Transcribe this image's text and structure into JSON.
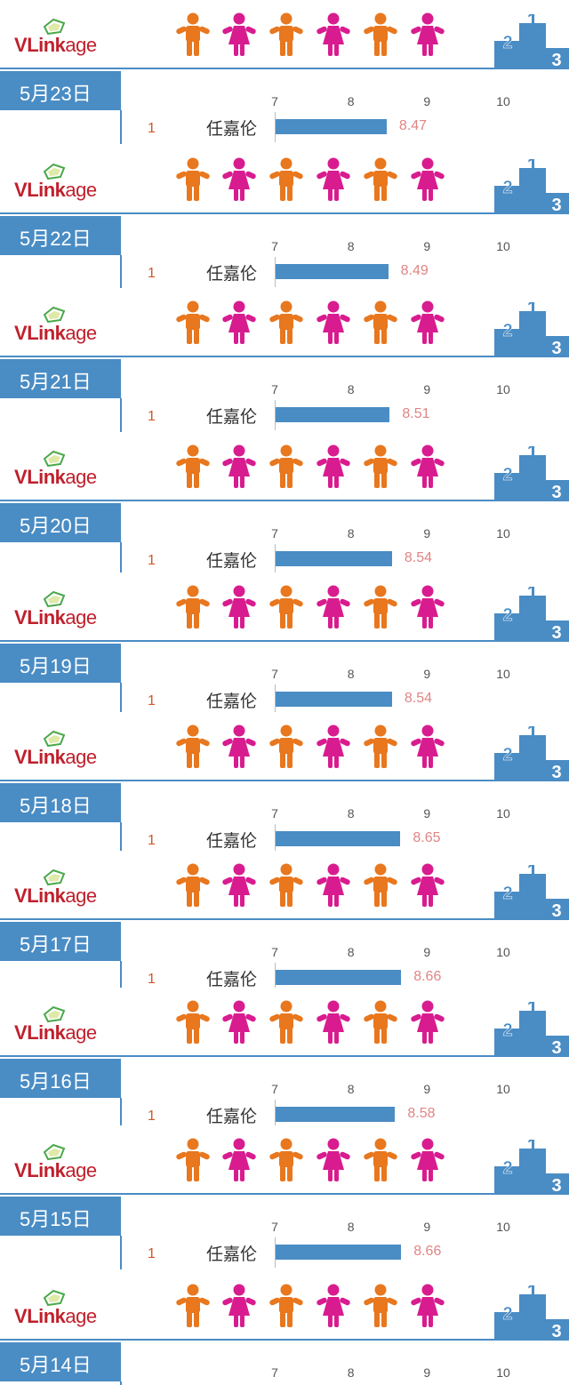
{
  "brand": {
    "logo_v": "V",
    "logo_link": "Link",
    "logo_age": "age"
  },
  "colors": {
    "accent": "#4a8cc4",
    "male_figure": "#e8771e",
    "female_figure": "#d81c8f",
    "value_text": "#e08585",
    "rank_text": "#d0582a"
  },
  "icons": {
    "logo": "vlinkage-logo-icon",
    "male": "male-person-icon",
    "female": "female-person-icon",
    "podium": "podium-icon"
  },
  "podium_labels": [
    "2",
    "1",
    "3"
  ],
  "chart_data": {
    "type": "bar",
    "orientation": "horizontal",
    "ticks": [
      7,
      8,
      9,
      10
    ],
    "xlim": [
      7,
      10
    ],
    "panels": [
      {
        "date": "5月23日",
        "rank": "1",
        "name": "任嘉伦",
        "value": 8.47,
        "value_label": "8.47"
      },
      {
        "date": "5月22日",
        "rank": "1",
        "name": "任嘉伦",
        "value": 8.49,
        "value_label": "8.49"
      },
      {
        "date": "5月21日",
        "rank": "1",
        "name": "任嘉伦",
        "value": 8.51,
        "value_label": "8.51"
      },
      {
        "date": "5月20日",
        "rank": "1",
        "name": "任嘉伦",
        "value": 8.54,
        "value_label": "8.54"
      },
      {
        "date": "5月19日",
        "rank": "1",
        "name": "任嘉伦",
        "value": 8.54,
        "value_label": "8.54"
      },
      {
        "date": "5月18日",
        "rank": "1",
        "name": "任嘉伦",
        "value": 8.65,
        "value_label": "8.65"
      },
      {
        "date": "5月17日",
        "rank": "1",
        "name": "任嘉伦",
        "value": 8.66,
        "value_label": "8.66"
      },
      {
        "date": "5月16日",
        "rank": "1",
        "name": "任嘉伦",
        "value": 8.58,
        "value_label": "8.58"
      },
      {
        "date": "5月15日",
        "rank": "1",
        "name": "任嘉伦",
        "value": 8.66,
        "value_label": "8.66"
      },
      {
        "date": "5月14日",
        "rank": "",
        "name": "",
        "value": null,
        "value_label": ""
      }
    ]
  }
}
